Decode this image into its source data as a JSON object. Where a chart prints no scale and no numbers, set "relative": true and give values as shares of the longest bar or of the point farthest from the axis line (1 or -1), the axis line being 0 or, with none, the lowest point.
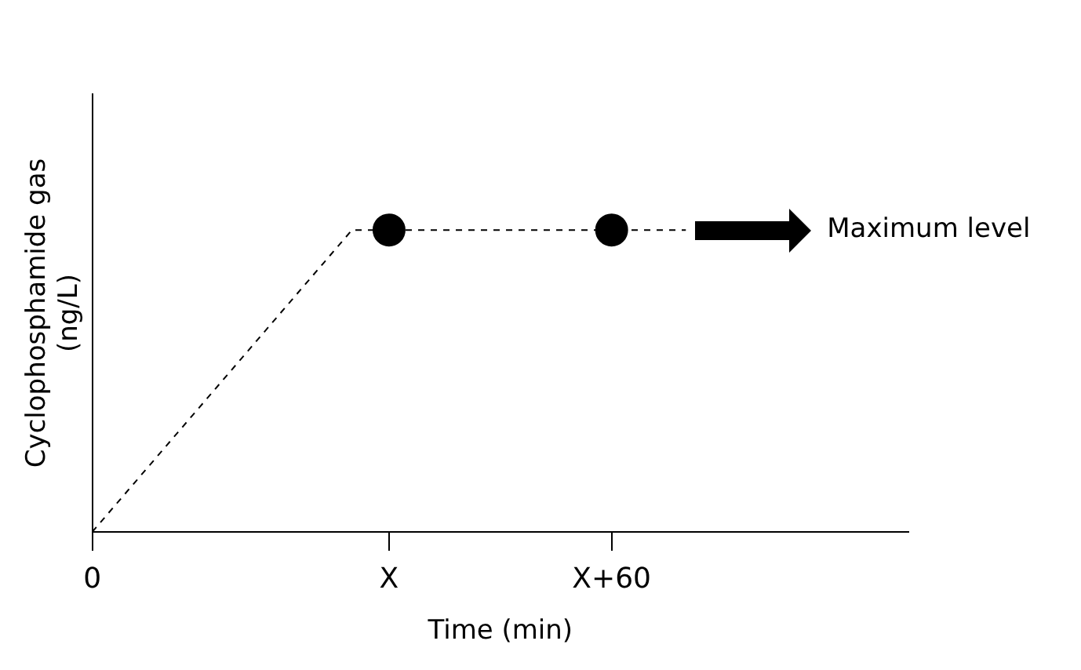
{
  "chart_data": {
    "type": "line",
    "xlabel": "Time (min)",
    "ylabel": "Cyclophosphamide gas (ng/L)",
    "relative": true,
    "categories": [
      "0",
      null,
      null,
      null,
      null,
      null,
      null,
      null,
      "X",
      null,
      null,
      null,
      null,
      null,
      "X+60",
      null,
      null,
      null,
      null,
      null,
      null,
      null,
      null
    ],
    "tick_labels": "x",
    "grid": false,
    "legend": false,
    "series": [
      {
        "type": "line",
        "color": "#000000",
        "values": [
          0,
          null,
          null,
          null,
          null,
          null,
          null,
          1,
          1,
          null,
          null,
          null,
          null,
          null,
          1,
          null,
          1,
          null,
          null,
          null,
          null,
          null,
          null
        ],
        "marker": "none",
        "line_style": "dashed"
      },
      {
        "type": "scatter",
        "color": "#000000",
        "values": [
          null,
          null,
          null,
          null,
          null,
          null,
          null,
          null,
          1,
          null,
          null,
          null,
          null,
          null,
          1,
          null,
          null,
          null,
          null,
          null,
          null,
          null,
          null
        ],
        "marker": "circle"
      }
    ],
    "annotations": [
      "Maximum level"
    ]
  }
}
